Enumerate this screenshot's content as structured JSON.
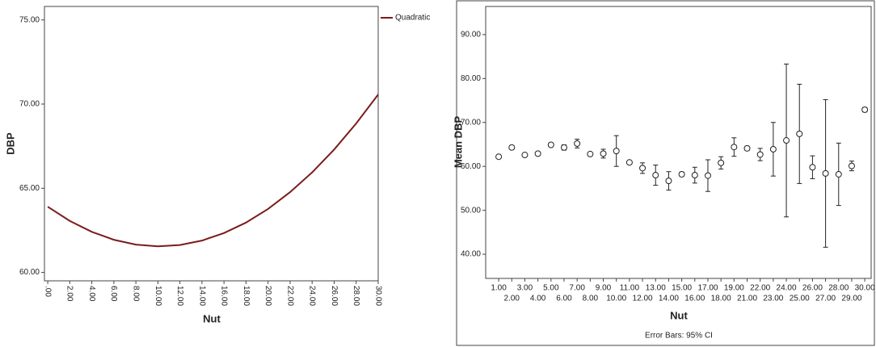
{
  "chart_data": [
    {
      "type": "line",
      "x_label": "Nut",
      "y_label": "DBP",
      "x": [
        0,
        2,
        4,
        6,
        8,
        10,
        12,
        14,
        16,
        18,
        20,
        22,
        24,
        26,
        28,
        30
      ],
      "series": [
        {
          "name": "Quadratic",
          "color": "#7a1c1c",
          "values": [
            63.9,
            63.06,
            62.41,
            61.94,
            61.65,
            61.55,
            61.63,
            61.89,
            62.34,
            62.96,
            63.77,
            64.77,
            65.94,
            67.3,
            68.85,
            70.57
          ]
        }
      ],
      "xlim": [
        -0.3,
        30
      ],
      "ylim": [
        59.5,
        75.8
      ],
      "xticks": [
        {
          "value": 0,
          "label": ".00"
        },
        {
          "value": 2,
          "label": "2.00"
        },
        {
          "value": 4,
          "label": "4.00"
        },
        {
          "value": 6,
          "label": "6.00"
        },
        {
          "value": 8,
          "label": "8.00"
        },
        {
          "value": 10,
          "label": "10.00"
        },
        {
          "value": 12,
          "label": "12.00"
        },
        {
          "value": 14,
          "label": "14.00"
        },
        {
          "value": 16,
          "label": "16.00"
        },
        {
          "value": 18,
          "label": "18.00"
        },
        {
          "value": 20,
          "label": "20.00"
        },
        {
          "value": 22,
          "label": "22.00"
        },
        {
          "value": 24,
          "label": "24.00"
        },
        {
          "value": 26,
          "label": "26.00"
        },
        {
          "value": 28,
          "label": "28.00"
        },
        {
          "value": 30,
          "label": "30.00"
        }
      ],
      "yticks": [
        {
          "value": 60,
          "label": "60.00"
        },
        {
          "value": 65,
          "label": "65.00"
        },
        {
          "value": 70,
          "label": "70.00"
        },
        {
          "value": 75,
          "label": "75.00"
        }
      ],
      "legend": "top-right-outside"
    },
    {
      "type": "errorbar",
      "x_label": "Nut",
      "y_label": "Mean DBP",
      "caption": "Error Bars: 95% CI",
      "categories": [
        "1.00",
        "2.00",
        "3.00",
        "4.00",
        "5.00",
        "6.00",
        "7.00",
        "8.00",
        "9.00",
        "10.00",
        "11.00",
        "12.00",
        "13.00",
        "14.00",
        "15.00",
        "16.00",
        "17.00",
        "18.00",
        "19.00",
        "21.00",
        "22.00",
        "23.00",
        "24.00",
        "25.00",
        "26.00",
        "27.00",
        "28.00",
        "29.00",
        "30.00"
      ],
      "values": [
        62.2,
        64.3,
        62.6,
        62.9,
        64.9,
        64.3,
        65.2,
        62.8,
        62.9,
        63.5,
        60.9,
        59.6,
        58.0,
        56.7,
        58.2,
        58.0,
        57.9,
        60.8,
        64.4,
        64.1,
        62.7,
        63.9,
        65.9,
        67.4,
        59.8,
        58.4,
        58.2,
        60.1,
        72.9
      ],
      "errors": [
        0.3,
        0.4,
        0.3,
        0.3,
        0.4,
        0.6,
        1.0,
        0.3,
        1.0,
        3.5,
        0.3,
        1.2,
        2.3,
        2.1,
        0.5,
        1.8,
        3.6,
        1.4,
        2.1,
        0.5,
        1.4,
        6.1,
        17.4,
        11.3,
        2.6,
        16.8,
        7.1,
        1.1,
        0.5
      ],
      "color": "#222222",
      "ylim": [
        34.5,
        96.4
      ],
      "yticks": [
        {
          "value": 40,
          "label": "40.00"
        },
        {
          "value": 50,
          "label": "50.00"
        },
        {
          "value": 60,
          "label": "60.00"
        },
        {
          "value": 70,
          "label": "70.00"
        },
        {
          "value": 80,
          "label": "80.00"
        },
        {
          "value": 90,
          "label": "90.00"
        }
      ]
    }
  ]
}
